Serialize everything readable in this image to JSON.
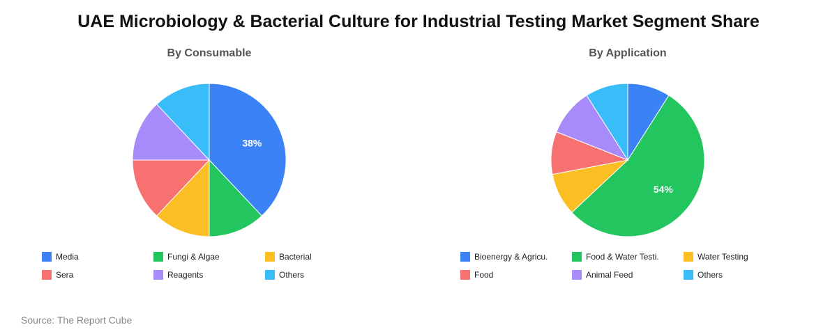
{
  "title": "UAE Microbiology & Bacterial Culture for Industrial Testing Market Segment Share",
  "source": "Source: The Report Cube",
  "chart_data": [
    {
      "type": "pie",
      "title": "By Consumable",
      "series": [
        {
          "name": "Media",
          "value": 38,
          "color": "#3b82f6"
        },
        {
          "name": "Fungi & Algae",
          "value": 12,
          "color": "#22c55e"
        },
        {
          "name": "Bacterial",
          "value": 12,
          "color": "#fbbf24"
        },
        {
          "name": "Sera",
          "value": 13,
          "color": "#f87171"
        },
        {
          "name": "Reagents",
          "value": 13,
          "color": "#a78bfa"
        },
        {
          "name": "Others",
          "value": 12,
          "color": "#38bdf8"
        }
      ],
      "shown_label": "38%"
    },
    {
      "type": "pie",
      "title": "By Application",
      "series": [
        {
          "name": "Bioenergy & Agricu.",
          "value": 9,
          "color": "#3b82f6"
        },
        {
          "name": "Food & Water Testi.",
          "value": 54,
          "color": "#22c55e"
        },
        {
          "name": "Water Testing",
          "value": 9,
          "color": "#fbbf24"
        },
        {
          "name": "Food",
          "value": 9,
          "color": "#f87171"
        },
        {
          "name": "Animal Feed",
          "value": 10,
          "color": "#a78bfa"
        },
        {
          "name": "Others",
          "value": 9,
          "color": "#38bdf8"
        }
      ],
      "shown_label": "54%"
    }
  ]
}
